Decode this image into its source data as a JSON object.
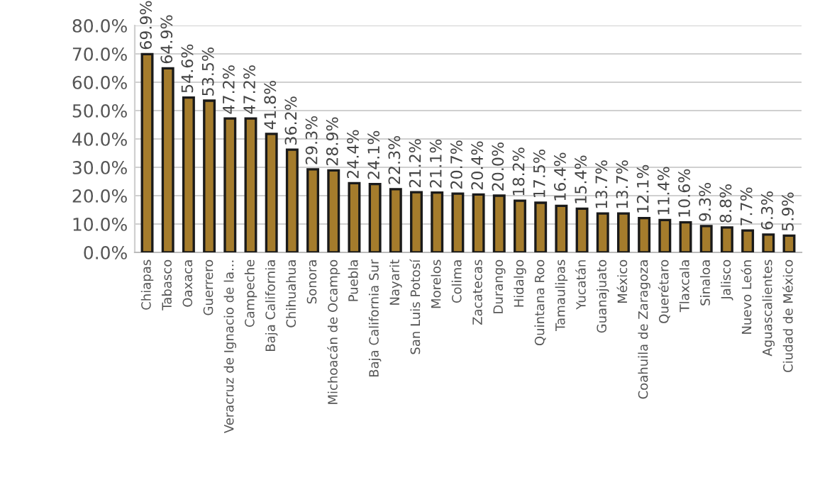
{
  "chart_data": {
    "type": "bar",
    "categories": [
      "Chiapas",
      "Tabasco",
      "Oaxaca",
      "Guerrero",
      "Veracruz de Ignacio de la...",
      "Campeche",
      "Baja California",
      "Chihuahua",
      "Sonora",
      "Michoacán de Ocampo",
      "Puebla",
      "Baja California Sur",
      "Nayarit",
      "San Luis Potosí",
      "Morelos",
      "Colima",
      "Zacatecas",
      "Durango",
      "Hidalgo",
      "Quintana Roo",
      "Tamaulipas",
      "Yucatán",
      "Guanajuato",
      "México",
      "Coahuila de Zaragoza",
      "Querétaro",
      "Tlaxcala",
      "Sinaloa",
      "Jalisco",
      "Nuevo León",
      "Aguascalientes",
      "Ciudad de México"
    ],
    "values": [
      69.9,
      64.9,
      54.6,
      53.5,
      47.2,
      47.2,
      41.8,
      36.2,
      29.3,
      28.9,
      24.4,
      24.1,
      22.3,
      21.2,
      21.1,
      20.7,
      20.4,
      20.0,
      18.2,
      17.5,
      16.4,
      15.4,
      13.7,
      13.7,
      12.1,
      11.4,
      10.6,
      9.3,
      8.8,
      7.7,
      6.3,
      5.9
    ],
    "value_labels": [
      "69.9%",
      "64.9%",
      "54.6%",
      "53.5%",
      "47.2%",
      "47.2%",
      "41.8%",
      "36.2%",
      "29.3%",
      "28.9%",
      "24.4%",
      "24.1%",
      "22.3%",
      "21.2%",
      "21.1%",
      "20.7%",
      "20.4%",
      "20.0%",
      "18.2%",
      "17.5%",
      "16.4%",
      "15.4%",
      "13.7%",
      "13.7%",
      "12.1%",
      "11.4%",
      "10.6%",
      "9.3%",
      "8.8%",
      "7.7%",
      "6.3%",
      "5.9%"
    ],
    "color": "#a57c2c",
    "ylim": [
      0,
      80
    ],
    "yticks": [
      {
        "value": 0,
        "label": "0.0%"
      },
      {
        "value": 10,
        "label": "10.0%"
      },
      {
        "value": 20,
        "label": "20.0%"
      },
      {
        "value": 30,
        "label": "30.0%"
      },
      {
        "value": 40,
        "label": "40.0%"
      },
      {
        "value": 50,
        "label": "50.0%"
      },
      {
        "value": 60,
        "label": "60.0%"
      },
      {
        "value": 70,
        "label": "70.0%"
      },
      {
        "value": 80,
        "label": "80.0%"
      }
    ],
    "grid": "y",
    "legend": false
  }
}
